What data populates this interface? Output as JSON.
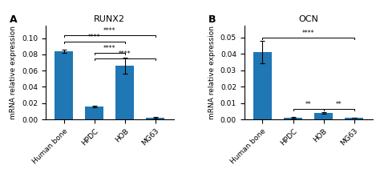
{
  "chart_data": [
    {
      "type": "bar",
      "title": "RUNX2",
      "panel_label": "A",
      "categories": [
        "Human bone",
        "HPDC",
        "HOB",
        "MG63"
      ],
      "values": [
        0.084,
        0.016,
        0.066,
        0.002
      ],
      "errors": [
        0.002,
        0.001,
        0.01,
        0.001
      ],
      "ylabel": "mRNA relative expression",
      "ylim": [
        0,
        0.115
      ],
      "yticks": [
        {
          "value": 0.0,
          "label": "0.00"
        },
        0.02,
        0.04,
        0.06,
        0.08,
        {
          "value": 0.1,
          "label": "0.10"
        }
      ],
      "grid": false,
      "annotations": [
        {
          "text": "****",
          "from": "Human bone",
          "to": "MG63",
          "y": 0.104
        },
        {
          "text": "****",
          "from": "Human bone",
          "to": "HOB",
          "y": 0.096
        },
        {
          "text": "****",
          "from": "HPDC",
          "to": "HOB",
          "y": 0.082
        },
        {
          "text": "****",
          "from": "HPDC",
          "to": "MG63",
          "y": 0.075
        }
      ]
    },
    {
      "type": "bar",
      "title": "OCN",
      "panel_label": "B",
      "categories": [
        "Human bone",
        "HPDC",
        "HOB",
        "MG63"
      ],
      "values": [
        0.041,
        0.001,
        0.004,
        0.001
      ],
      "errors": [
        0.007,
        0.0003,
        0.0005,
        0.0002
      ],
      "ylabel": "mRNA relative expression",
      "ylim": [
        0,
        0.057
      ],
      "yticks": [
        {
          "value": 0.0,
          "label": "0.00"
        },
        0.01,
        0.02,
        0.03,
        0.04,
        0.05
      ],
      "grid": false,
      "annotations": [
        {
          "text": "****",
          "from": "Human bone",
          "to": "MG63",
          "y": 0.05
        },
        {
          "text": "**",
          "from": "HPDC",
          "to": "HOB",
          "y": 0.0065
        },
        {
          "text": "**",
          "from": "HOB",
          "to": "MG63",
          "y": 0.0065
        }
      ]
    }
  ]
}
